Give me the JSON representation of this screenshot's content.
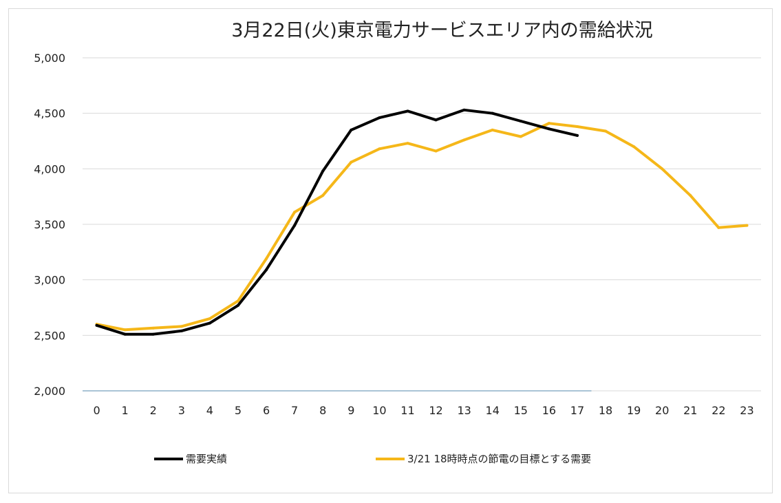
{
  "chart_data": {
    "type": "line",
    "title": "3月22日(火)東京電力サービスエリア内の需給状況",
    "xlabel": "",
    "ylabel": "",
    "categories": [
      "0",
      "1",
      "2",
      "3",
      "4",
      "5",
      "6",
      "7",
      "8",
      "9",
      "10",
      "11",
      "12",
      "13",
      "14",
      "15",
      "16",
      "17",
      "18",
      "19",
      "20",
      "21",
      "22",
      "23"
    ],
    "ylim": [
      2000,
      5000
    ],
    "yticks": [
      2000,
      2500,
      3000,
      3500,
      4000,
      4500,
      5000
    ],
    "ytick_labels": [
      "2,000",
      "2,500",
      "3,000",
      "3,500",
      "4,000",
      "4,500",
      "5,000"
    ],
    "grid": true,
    "legend_position": "bottom",
    "series": [
      {
        "name": "需要実績",
        "color": "#000000",
        "values": [
          2590,
          2510,
          2510,
          2540,
          2610,
          2770,
          3090,
          3490,
          3980,
          4350,
          4460,
          4520,
          4440,
          4530,
          4500,
          4430,
          4360,
          4300,
          null,
          null,
          null,
          null,
          null,
          null
        ]
      },
      {
        "name": "3/21 18時時点の節電の目標とする需要",
        "color": "#f5b719",
        "values": [
          2600,
          2550,
          2565,
          2580,
          2650,
          2810,
          3190,
          3610,
          3760,
          4060,
          4180,
          4230,
          4160,
          4260,
          4350,
          4290,
          4410,
          4380,
          4340,
          4200,
          4000,
          3760,
          3470,
          3490
        ]
      }
    ]
  }
}
